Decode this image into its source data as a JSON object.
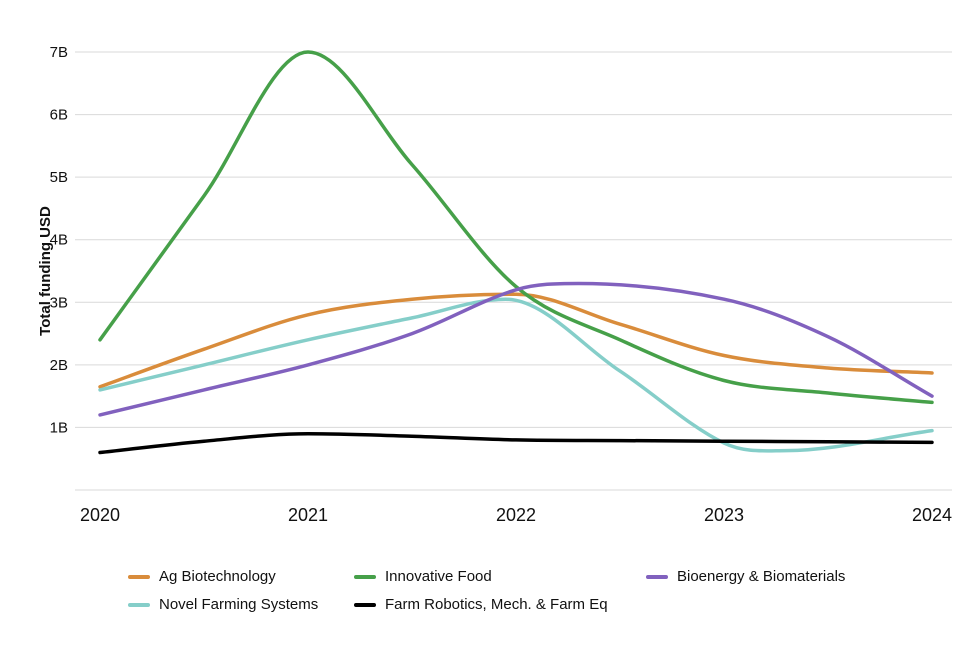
{
  "page": {
    "background": "#ffffff"
  },
  "styles": {
    "gridline_color": "#d9d9d9",
    "axis_text_color": "#111111",
    "line_width": 3.5
  },
  "chart_data": {
    "type": "line",
    "title": "",
    "xlabel": "",
    "ylabel": "Total funding USD",
    "units": "billions USD",
    "xlim": [
      2020,
      2024
    ],
    "ylim": [
      0,
      7
    ],
    "x_tick_years": [
      2020,
      2021,
      2022,
      2023,
      2024
    ],
    "x_tick_labels": [
      "2020",
      "2021",
      "2022",
      "2023",
      "2024"
    ],
    "y_tick_values": [
      1,
      2,
      3,
      4,
      5,
      6,
      7
    ],
    "y_tick_labels": [
      "1B",
      "2B",
      "3B",
      "4B",
      "5B",
      "6B",
      "7B"
    ],
    "grid": "horizontal-only",
    "legend_position": "bottom",
    "draw_order": [
      0,
      3,
      1,
      4,
      2
    ],
    "series": [
      {
        "name": "Ag Biotechnology",
        "color": "#D98C3B",
        "x": [
          2020,
          2020.5,
          2021,
          2021.5,
          2022,
          2022.5,
          2023,
          2023.5,
          2024
        ],
        "y": [
          1.65,
          2.25,
          2.8,
          3.05,
          3.13,
          2.65,
          2.15,
          1.95,
          1.87
        ]
      },
      {
        "name": "Innovative Food",
        "color": "#46A049",
        "x": [
          2020,
          2020.5,
          2021,
          2021.5,
          2022,
          2022.5,
          2023,
          2023.5,
          2024
        ],
        "y": [
          2.4,
          4.7,
          7.0,
          5.2,
          3.25,
          2.4,
          1.75,
          1.55,
          1.4
        ]
      },
      {
        "name": "Bioenergy & Biomaterials",
        "color": "#8161BE",
        "x": [
          2020,
          2020.5,
          2021,
          2021.5,
          2022,
          2022.3,
          2023,
          2023.5,
          2024
        ],
        "y": [
          1.2,
          1.6,
          2.0,
          2.5,
          3.2,
          3.3,
          3.05,
          2.45,
          1.5
        ]
      },
      {
        "name": "Novel Farming Systems",
        "color": "#85CEC9",
        "x": [
          2020,
          2020.5,
          2021,
          2021.5,
          2021.95,
          2022.5,
          2023,
          2023.3,
          2024
        ],
        "y": [
          1.6,
          2.0,
          2.4,
          2.75,
          3.05,
          1.9,
          0.75,
          0.63,
          0.95
        ]
      },
      {
        "name": "Farm Robotics, Mech. & Farm Eq",
        "color": "#000000",
        "x": [
          2020,
          2020.5,
          2021,
          2021.5,
          2022,
          2022.5,
          2023,
          2023.5,
          2024
        ],
        "y": [
          0.6,
          0.78,
          0.9,
          0.86,
          0.8,
          0.79,
          0.78,
          0.77,
          0.76
        ]
      }
    ]
  }
}
